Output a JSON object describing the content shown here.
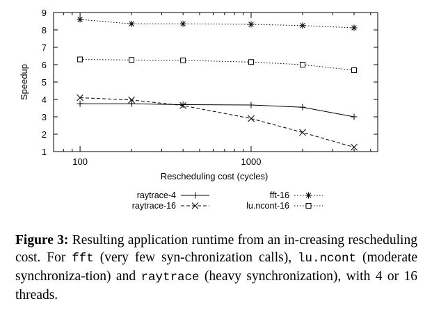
{
  "chart_data": {
    "type": "line",
    "x_scale": "log",
    "xlabel": "Rescheduling cost (cycles)",
    "ylabel": "Speedup",
    "xlim": [
      70,
      5500
    ],
    "ylim": [
      1,
      9
    ],
    "x_ticks": [
      100,
      1000
    ],
    "y_ticks": [
      1,
      2,
      3,
      4,
      5,
      6,
      7,
      8,
      9
    ],
    "grid": false,
    "legend_position": "bottom, outside plot",
    "series": [
      {
        "name": "raytrace-4",
        "marker": "plus",
        "line": "solid",
        "x": [
          100,
          200,
          400,
          1000,
          2000,
          4000
        ],
        "y": [
          3.75,
          3.75,
          3.7,
          3.68,
          3.55,
          3.0
        ]
      },
      {
        "name": "raytrace-16",
        "marker": "x",
        "line": "dashed",
        "x": [
          100,
          200,
          400,
          1000,
          2000,
          4000
        ],
        "y": [
          4.1,
          3.97,
          3.65,
          2.9,
          2.1,
          1.25
        ]
      },
      {
        "name": "fft-16",
        "marker": "star",
        "line": "dotted",
        "x": [
          100,
          200,
          400,
          1000,
          2000,
          4000
        ],
        "y": [
          8.6,
          8.35,
          8.35,
          8.32,
          8.25,
          8.12
        ]
      },
      {
        "name": "lu.ncont-16",
        "marker": "square",
        "line": "dotted",
        "x": [
          100,
          200,
          400,
          1000,
          2000,
          4000
        ],
        "y": [
          6.3,
          6.27,
          6.25,
          6.15,
          6.0,
          5.68
        ]
      }
    ]
  },
  "caption": {
    "label": "Figure 3:",
    "text_1": "Resulting application runtime from an in-creasing rescheduling cost.  For",
    "code_1": "fft",
    "text_2": "(very few syn-chronization calls),",
    "code_2": "lu.ncont",
    "text_3": "(moderate synchroniza-tion) and",
    "code_3": "raytrace",
    "text_4": "(heavy synchronization), with 4 or 16 threads."
  }
}
